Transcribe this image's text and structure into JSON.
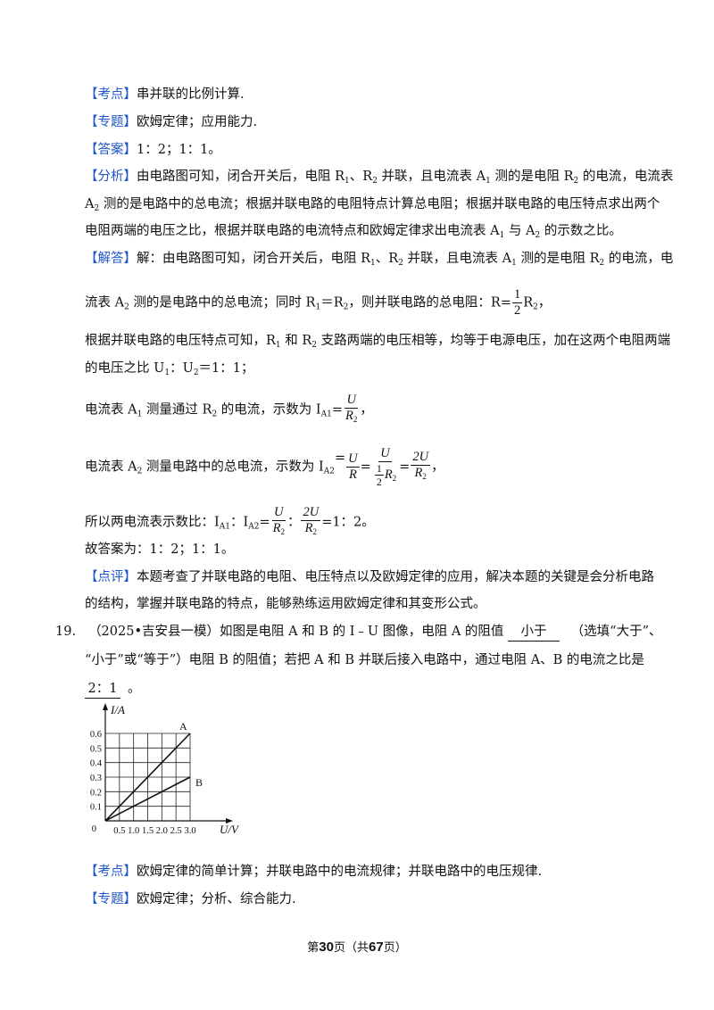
{
  "q18": {
    "kaodian": {
      "tag": "【考点】",
      "text": "串并联的比例计算."
    },
    "zhuanti": {
      "tag": "【专题】",
      "text": "欧姆定律；应用能力."
    },
    "daan": {
      "tag": "【答案】",
      "text": "1：2；1：1。"
    },
    "fenxi": {
      "tag": "【分析】",
      "l1a": "由电路图可知，闭合开关后，电阻 R",
      "l1b": "、R",
      "l1c": " 并联，且电流表 A",
      "l1d": " 测的是电阻 R",
      "l1e": " 的电流，电流表",
      "l2a": "A",
      "l2b": " 测的是电路中的总电流；根据并联电路的电阻特点计算总电阻；根据并联电路的电压特点求出两个",
      "l3a": "电阻两端的电压之比，根据并联电路的电流特点和欧姆定律求出电流表 A",
      "l3b": " 与 A",
      "l3c": " 的示数之比。"
    },
    "jieda": {
      "tag": "【解答】",
      "l1a": "解：由电路图可知，闭合开关后，电阻 R",
      "l1b": "、R",
      "l1c": " 并联，且电流表 A",
      "l1d": " 测的是电阻 R",
      "l1e": " 的电流，电",
      "l2a": "流表 A",
      "l2b": " 测的是电路中的总电流；同时 R",
      "l2c": "＝R",
      "l2d": "，则并联电路的总电阻：R=",
      "l2e": "R",
      "l2f": "，",
      "l3": "根据并联电路的电压特点可知，R",
      "l3b": " 和 R",
      "l3c": " 支路两端的电压相等，均等于电源电压，加在这两个电阻两端",
      "l4a": "的电压之比 U",
      "l4b": "：U",
      "l4c": "＝1：1；",
      "l5a": "电流表 A",
      "l5b": " 测量通过 R",
      "l5c": " 的电流，示数为 I",
      "l5d": "=",
      "l5e": "，",
      "l6a": "电流表 A",
      "l6b": " 测量电路中的总电流，示数为 I",
      "l6c": "，",
      "l7a": "所以两电流表示数比：I",
      "l7b": "：I",
      "l7c": "=",
      "l7d": "：",
      "l7e": "=1：2。",
      "l8": "故答案为：1：2；1：1。"
    },
    "dianping": {
      "tag": "【点评】",
      "l1": "本题考查了并联电路的电阻、电压特点以及欧姆定律的应用，解决本题的关键是会分析电路",
      "l2": "的结构，掌握并联电路的特点，能够熟练运用欧姆定律和其变形公式。"
    }
  },
  "sym": {
    "one": "1",
    "two": "2",
    "A1": "A1",
    "A2": "A2",
    "U": "U",
    "R": "R",
    "R2": "R",
    "twoU": "2U",
    "half_num": "1",
    "half_den": "2"
  },
  "q19": {
    "number": "19.",
    "l1a": "（2025•吉安县一模）如图是电阻 A 和 B 的 I﹣U 图像，电阻 A 的阻值",
    "blank1": "小于",
    "l1b": "（选填“大于”、",
    "l2": "“小于”或“等于”）电阻 B 的阻值；若把 A 和 B 并联后接入电路中，通过电阻 A、B 的电流之比是",
    "blank2": "2：1",
    "l3b": "。",
    "kaodian": {
      "tag": "【考点】",
      "text": "欧姆定律的简单计算；并联电路中的电流规律；并联电路中的电压规律."
    },
    "zhuanti": {
      "tag": "【专题】",
      "text": "欧姆定律；分析、综合能力."
    }
  },
  "chart_data": {
    "type": "line",
    "ylabel": "I/A",
    "xlabel": "U/V",
    "origin_label": "0",
    "x_ticks": [
      "0.5",
      "1.0",
      "1.5",
      "2.0",
      "2.5",
      "3.0"
    ],
    "y_ticks": [
      "0.1",
      "0.2",
      "0.3",
      "0.4",
      "0.5",
      "0.6"
    ],
    "xlim": [
      0,
      3.0
    ],
    "ylim": [
      0,
      0.6
    ],
    "grid": true,
    "series": [
      {
        "name": "A",
        "x": [
          0,
          3.0
        ],
        "y": [
          0,
          0.6
        ]
      },
      {
        "name": "B",
        "x": [
          0,
          3.0
        ],
        "y": [
          0,
          0.3
        ]
      }
    ]
  },
  "footer": {
    "pre": "第",
    "page": "30",
    "mid": "页（共",
    "total": "67",
    "post": "页）"
  },
  "colors": {
    "tag": "#1f55c8",
    "text": "#111111"
  }
}
